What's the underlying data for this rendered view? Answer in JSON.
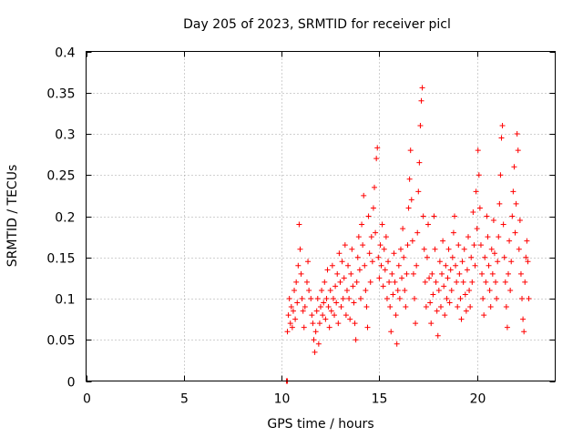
{
  "chart_data": {
    "type": "scatter",
    "title": "Day 205 of 2023, SRMTID for receiver picl",
    "xlabel": "GPS time / hours",
    "ylabel": "SRMTID / TECUs",
    "xlim": [
      0,
      24
    ],
    "ylim": [
      0,
      0.4
    ],
    "xticks": [
      0,
      5,
      10,
      15,
      20
    ],
    "xtick_labels": [
      "0",
      "5",
      "10",
      "15",
      "20"
    ],
    "yticks": [
      0,
      0.05,
      0.1,
      0.15,
      0.2,
      0.25,
      0.3,
      0.35,
      0.4
    ],
    "ytick_labels": [
      "0",
      "0.05",
      "0.1",
      "0.15",
      "0.2",
      "0.25",
      "0.3",
      "0.35",
      "0.4"
    ],
    "grid": true,
    "marker": "plus",
    "color": "#ff0000",
    "series": [
      {
        "name": "SRMTID",
        "points": [
          [
            10.25,
            0.0
          ],
          [
            10.3,
            0.0
          ],
          [
            10.3,
            0.06
          ],
          [
            10.35,
            0.08
          ],
          [
            10.4,
            0.1
          ],
          [
            10.45,
            0.07
          ],
          [
            10.5,
            0.09
          ],
          [
            10.55,
            0.065
          ],
          [
            10.6,
            0.085
          ],
          [
            10.65,
            0.11
          ],
          [
            10.7,
            0.075
          ],
          [
            10.75,
            0.12
          ],
          [
            10.8,
            0.095
          ],
          [
            10.85,
            0.14
          ],
          [
            10.9,
            0.19
          ],
          [
            10.95,
            0.16
          ],
          [
            11.0,
            0.13
          ],
          [
            11.05,
            0.1
          ],
          [
            11.1,
            0.085
          ],
          [
            11.15,
            0.065
          ],
          [
            11.2,
            0.09
          ],
          [
            11.3,
            0.12
          ],
          [
            11.35,
            0.145
          ],
          [
            11.4,
            0.11
          ],
          [
            11.5,
            0.1
          ],
          [
            11.55,
            0.08
          ],
          [
            11.6,
            0.07
          ],
          [
            11.65,
            0.05
          ],
          [
            11.7,
            0.035
          ],
          [
            11.75,
            0.06
          ],
          [
            11.8,
            0.085
          ],
          [
            11.85,
            0.1
          ],
          [
            11.9,
            0.045
          ],
          [
            11.95,
            0.07
          ],
          [
            12.0,
            0.09
          ],
          [
            12.05,
            0.11
          ],
          [
            12.1,
            0.08
          ],
          [
            12.15,
            0.095
          ],
          [
            12.2,
            0.12
          ],
          [
            12.25,
            0.075
          ],
          [
            12.3,
            0.1
          ],
          [
            12.35,
            0.135
          ],
          [
            12.4,
            0.09
          ],
          [
            12.45,
            0.065
          ],
          [
            12.5,
            0.11
          ],
          [
            12.55,
            0.085
          ],
          [
            12.6,
            0.14
          ],
          [
            12.65,
            0.1
          ],
          [
            12.7,
            0.08
          ],
          [
            12.75,
            0.115
          ],
          [
            12.8,
            0.095
          ],
          [
            12.85,
            0.13
          ],
          [
            12.9,
            0.07
          ],
          [
            12.95,
            0.155
          ],
          [
            13.0,
            0.12
          ],
          [
            13.05,
            0.09
          ],
          [
            13.1,
            0.145
          ],
          [
            13.15,
            0.1
          ],
          [
            13.2,
            0.125
          ],
          [
            13.25,
            0.165
          ],
          [
            13.3,
            0.08
          ],
          [
            13.35,
            0.11
          ],
          [
            13.4,
            0.14
          ],
          [
            13.45,
            0.1
          ],
          [
            13.5,
            0.075
          ],
          [
            13.55,
            0.13
          ],
          [
            13.6,
            0.16
          ],
          [
            13.65,
            0.115
          ],
          [
            13.7,
            0.095
          ],
          [
            13.75,
            0.07
          ],
          [
            13.8,
            0.05
          ],
          [
            13.85,
            0.12
          ],
          [
            13.9,
            0.15
          ],
          [
            13.95,
            0.175
          ],
          [
            14.0,
            0.135
          ],
          [
            14.05,
            0.1
          ],
          [
            14.1,
            0.19
          ],
          [
            14.15,
            0.165
          ],
          [
            14.2,
            0.225
          ],
          [
            14.25,
            0.14
          ],
          [
            14.3,
            0.11
          ],
          [
            14.35,
            0.09
          ],
          [
            14.4,
            0.065
          ],
          [
            14.45,
            0.2
          ],
          [
            14.5,
            0.155
          ],
          [
            14.55,
            0.12
          ],
          [
            14.6,
            0.175
          ],
          [
            14.65,
            0.145
          ],
          [
            14.7,
            0.21
          ],
          [
            14.75,
            0.235
          ],
          [
            14.8,
            0.18
          ],
          [
            14.85,
            0.27
          ],
          [
            14.9,
            0.283
          ],
          [
            14.95,
            0.15
          ],
          [
            15.0,
            0.125
          ],
          [
            15.05,
            0.165
          ],
          [
            15.1,
            0.14
          ],
          [
            15.15,
            0.19
          ],
          [
            15.2,
            0.115
          ],
          [
            15.25,
            0.16
          ],
          [
            15.3,
            0.135
          ],
          [
            15.35,
            0.175
          ],
          [
            15.4,
            0.1
          ],
          [
            15.45,
            0.145
          ],
          [
            15.5,
            0.12
          ],
          [
            15.55,
            0.09
          ],
          [
            15.6,
            0.06
          ],
          [
            15.65,
            0.13
          ],
          [
            15.7,
            0.105
          ],
          [
            15.75,
            0.155
          ],
          [
            15.8,
            0.12
          ],
          [
            15.85,
            0.08
          ],
          [
            15.9,
            0.045
          ],
          [
            15.95,
            0.11
          ],
          [
            16.0,
            0.14
          ],
          [
            16.05,
            0.1
          ],
          [
            16.1,
            0.16
          ],
          [
            16.15,
            0.125
          ],
          [
            16.2,
            0.185
          ],
          [
            16.25,
            0.15
          ],
          [
            16.3,
            0.11
          ],
          [
            16.35,
            0.09
          ],
          [
            16.4,
            0.13
          ],
          [
            16.45,
            0.165
          ],
          [
            16.5,
            0.21
          ],
          [
            16.55,
            0.245
          ],
          [
            16.6,
            0.28
          ],
          [
            16.65,
            0.22
          ],
          [
            16.7,
            0.17
          ],
          [
            16.75,
            0.13
          ],
          [
            16.8,
            0.1
          ],
          [
            16.85,
            0.07
          ],
          [
            16.9,
            0.14
          ],
          [
            16.95,
            0.18
          ],
          [
            17.0,
            0.23
          ],
          [
            17.05,
            0.265
          ],
          [
            17.1,
            0.31
          ],
          [
            17.15,
            0.34
          ],
          [
            17.2,
            0.356
          ],
          [
            17.25,
            0.2
          ],
          [
            17.3,
            0.16
          ],
          [
            17.35,
            0.12
          ],
          [
            17.4,
            0.09
          ],
          [
            17.45,
            0.15
          ],
          [
            17.5,
            0.19
          ],
          [
            17.55,
            0.125
          ],
          [
            17.6,
            0.095
          ],
          [
            17.65,
            0.07
          ],
          [
            17.7,
            0.13
          ],
          [
            17.75,
            0.105
          ],
          [
            17.8,
            0.2
          ],
          [
            17.85,
            0.16
          ],
          [
            17.9,
            0.12
          ],
          [
            17.95,
            0.085
          ],
          [
            18.0,
            0.055
          ],
          [
            18.05,
            0.11
          ],
          [
            18.1,
            0.145
          ],
          [
            18.15,
            0.09
          ],
          [
            18.2,
            0.13
          ],
          [
            18.25,
            0.17
          ],
          [
            18.3,
            0.115
          ],
          [
            18.35,
            0.08
          ],
          [
            18.4,
            0.14
          ],
          [
            18.45,
            0.1
          ],
          [
            18.5,
            0.125
          ],
          [
            18.55,
            0.16
          ],
          [
            18.6,
            0.095
          ],
          [
            18.65,
            0.135
          ],
          [
            18.7,
            0.11
          ],
          [
            18.75,
            0.15
          ],
          [
            18.8,
            0.18
          ],
          [
            18.85,
            0.2
          ],
          [
            18.9,
            0.14
          ],
          [
            18.95,
            0.12
          ],
          [
            19.0,
            0.09
          ],
          [
            19.05,
            0.165
          ],
          [
            19.1,
            0.13
          ],
          [
            19.15,
            0.1
          ],
          [
            19.2,
            0.075
          ],
          [
            19.25,
            0.145
          ],
          [
            19.3,
            0.12
          ],
          [
            19.35,
            0.16
          ],
          [
            19.4,
            0.105
          ],
          [
            19.45,
            0.085
          ],
          [
            19.5,
            0.135
          ],
          [
            19.55,
            0.175
          ],
          [
            19.6,
            0.11
          ],
          [
            19.65,
            0.09
          ],
          [
            19.7,
            0.15
          ],
          [
            19.75,
            0.12
          ],
          [
            19.8,
            0.205
          ],
          [
            19.85,
            0.165
          ],
          [
            19.9,
            0.14
          ],
          [
            19.95,
            0.23
          ],
          [
            20.0,
            0.185
          ],
          [
            20.05,
            0.28
          ],
          [
            20.1,
            0.25
          ],
          [
            20.15,
            0.21
          ],
          [
            20.2,
            0.165
          ],
          [
            20.25,
            0.13
          ],
          [
            20.3,
            0.1
          ],
          [
            20.35,
            0.08
          ],
          [
            20.4,
            0.15
          ],
          [
            20.45,
            0.12
          ],
          [
            20.5,
            0.2
          ],
          [
            20.55,
            0.175
          ],
          [
            20.6,
            0.14
          ],
          [
            20.65,
            0.11
          ],
          [
            20.7,
            0.09
          ],
          [
            20.75,
            0.16
          ],
          [
            20.8,
            0.13
          ],
          [
            20.85,
            0.195
          ],
          [
            20.9,
            0.155
          ],
          [
            20.95,
            0.12
          ],
          [
            21.0,
            0.1
          ],
          [
            21.05,
            0.145
          ],
          [
            21.1,
            0.175
          ],
          [
            21.15,
            0.215
          ],
          [
            21.2,
            0.25
          ],
          [
            21.25,
            0.295
          ],
          [
            21.3,
            0.31
          ],
          [
            21.35,
            0.19
          ],
          [
            21.4,
            0.15
          ],
          [
            21.45,
            0.12
          ],
          [
            21.5,
            0.09
          ],
          [
            21.55,
            0.065
          ],
          [
            21.6,
            0.13
          ],
          [
            21.65,
            0.17
          ],
          [
            21.7,
            0.11
          ],
          [
            21.75,
            0.145
          ],
          [
            21.8,
            0.2
          ],
          [
            21.85,
            0.23
          ],
          [
            21.9,
            0.26
          ],
          [
            21.95,
            0.18
          ],
          [
            22.0,
            0.215
          ],
          [
            22.05,
            0.3
          ],
          [
            22.1,
            0.28
          ],
          [
            22.15,
            0.16
          ],
          [
            22.2,
            0.195
          ],
          [
            22.25,
            0.13
          ],
          [
            22.3,
            0.1
          ],
          [
            22.35,
            0.075
          ],
          [
            22.4,
            0.06
          ],
          [
            22.45,
            0.12
          ],
          [
            22.5,
            0.15
          ],
          [
            22.55,
            0.17
          ],
          [
            22.6,
            0.145
          ],
          [
            22.65,
            0.1
          ]
        ]
      }
    ]
  }
}
